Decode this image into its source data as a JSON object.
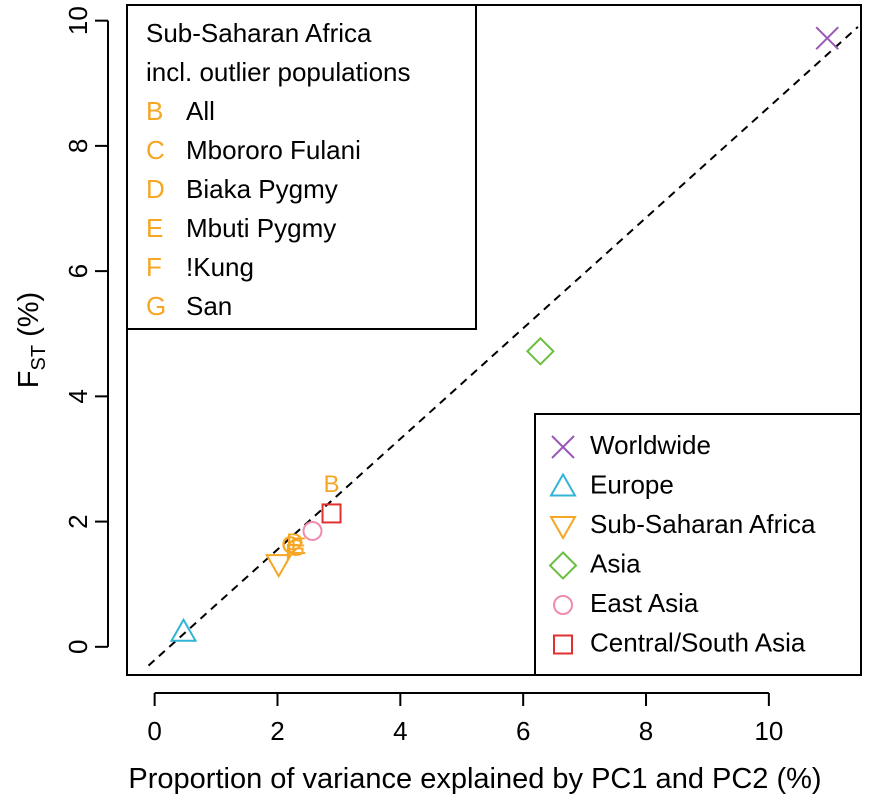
{
  "chart_data": {
    "type": "scatter",
    "xlabel": "Proportion of variance explained by PC1 and PC2 (%)",
    "ylabel_main": "F",
    "ylabel_sub": "ST",
    "ylabel_suffix": " (%)",
    "xlim": [
      -0.45,
      11.5
    ],
    "ylim": [
      -0.45,
      10.25
    ],
    "xticks": [
      "0",
      "2",
      "4",
      "6",
      "8",
      "10"
    ],
    "xtick_values": [
      0,
      2,
      4,
      6,
      8,
      10
    ],
    "yticks": [
      "0",
      "2",
      "4",
      "6",
      "8",
      "10"
    ],
    "ytick_values": [
      0,
      2,
      4,
      6,
      8,
      10
    ],
    "grid": false,
    "reference_line": {
      "style": "dashed",
      "x": [
        -0.1,
        11.45
      ],
      "y": [
        -0.3,
        9.9
      ]
    },
    "series": [
      {
        "name": "Worldwide",
        "marker": "x",
        "color": "#9b59b6",
        "points": [
          [
            10.95,
            9.72
          ]
        ]
      },
      {
        "name": "Europe",
        "marker": "triangle-up",
        "color": "#33b4d6",
        "points": [
          [
            0.47,
            0.24
          ]
        ]
      },
      {
        "name": "Sub-Saharan Africa",
        "marker": "triangle-down",
        "color": "#f5a623",
        "points": [
          [
            2.02,
            1.32
          ]
        ]
      },
      {
        "name": "Asia",
        "marker": "diamond",
        "color": "#6abf40",
        "points": [
          [
            6.28,
            4.72
          ]
        ]
      },
      {
        "name": "East Asia",
        "marker": "circle",
        "color": "#f08ab0",
        "points": [
          [
            2.57,
            1.85
          ]
        ]
      },
      {
        "name": "Central/South Asia",
        "marker": "square",
        "color": "#e03030",
        "points": [
          [
            2.88,
            2.13
          ]
        ]
      }
    ],
    "letter_points": [
      {
        "label": "B",
        "x": 2.88,
        "y": 2.57
      },
      {
        "label": "C",
        "x": 2.2,
        "y": 1.6
      },
      {
        "label": "D",
        "x": 2.28,
        "y": 1.65
      },
      {
        "label": "E",
        "x": 2.34,
        "y": 1.58
      },
      {
        "label": "F",
        "x": 2.24,
        "y": 1.48
      },
      {
        "label": "G",
        "x": 2.3,
        "y": 1.55
      }
    ],
    "letter_color": "#f5a623",
    "legend_top_left": {
      "title_line1": "Sub-Saharan Africa",
      "title_line2": "incl. outlier populations",
      "entries": [
        {
          "key": "B",
          "label": "All"
        },
        {
          "key": "C",
          "label": "Mbororo Fulani"
        },
        {
          "key": "D",
          "label": "Biaka Pygmy"
        },
        {
          "key": "E",
          "label": "Mbuti Pygmy"
        },
        {
          "key": "F",
          "label": "!Kung"
        },
        {
          "key": "G",
          "label": "San"
        }
      ]
    },
    "legend_bottom_right": {
      "entries": [
        {
          "label": "Worldwide",
          "marker": "x",
          "color": "#9b59b6"
        },
        {
          "label": "Europe",
          "marker": "triangle-up",
          "color": "#33b4d6"
        },
        {
          "label": "Sub-Saharan Africa",
          "marker": "triangle-down",
          "color": "#f5a623"
        },
        {
          "label": "Asia",
          "marker": "diamond",
          "color": "#6abf40"
        },
        {
          "label": "East Asia",
          "marker": "circle",
          "color": "#f08ab0"
        },
        {
          "label": "Central/South Asia",
          "marker": "square",
          "color": "#e03030"
        }
      ]
    }
  }
}
